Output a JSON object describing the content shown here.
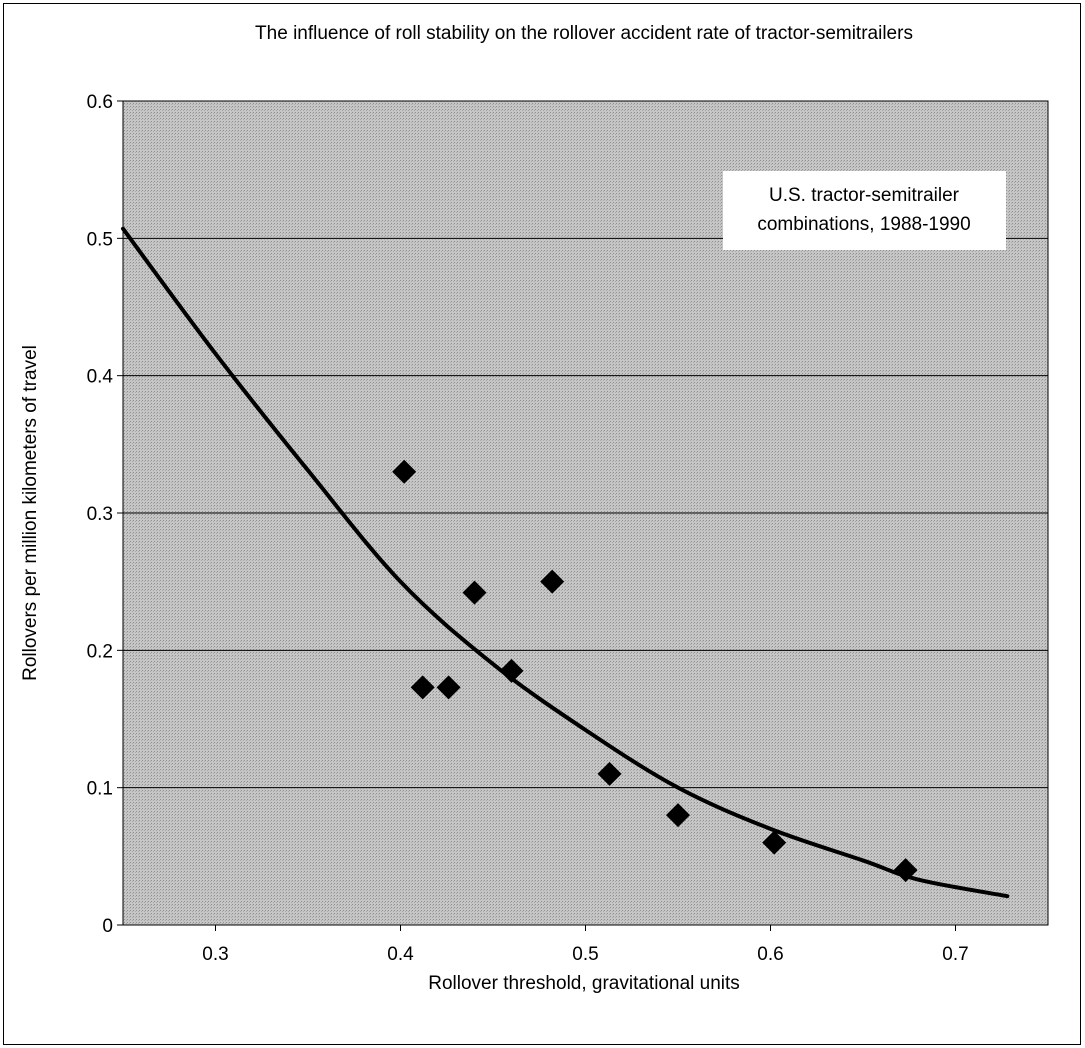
{
  "chart_data": {
    "type": "scatter",
    "title": "The influence of roll stability on the rollover accident rate of tractor-semitrailers",
    "xlabel": "Rollover threshold, gravitational units",
    "ylabel": "Rollovers per million kilometers of travel",
    "xlim": [
      0.25,
      0.75
    ],
    "ylim": [
      0,
      0.6
    ],
    "x_ticks": [
      0.3,
      0.4,
      0.5,
      0.6,
      0.7
    ],
    "y_ticks": [
      0,
      0.1,
      0.2,
      0.3,
      0.4,
      0.5,
      0.6
    ],
    "x_tick_labels": [
      "0.3",
      "0.4",
      "0.5",
      "0.6",
      "0.7"
    ],
    "y_tick_labels": [
      "0",
      "0.1",
      "0.2",
      "0.3",
      "0.4",
      "0.5",
      "0.6"
    ],
    "grid": {
      "horizontal": true,
      "vertical": false
    },
    "annotation_lines": [
      "U.S. tractor-semitrailer",
      "combinations, 1988-1990"
    ],
    "series": [
      {
        "type": "scatter",
        "marker": "diamond",
        "x": [
          0.402,
          0.412,
          0.426,
          0.44,
          0.46,
          0.482,
          0.513,
          0.55,
          0.602,
          0.673
        ],
        "y": [
          0.33,
          0.173,
          0.173,
          0.242,
          0.185,
          0.25,
          0.11,
          0.08,
          0.06,
          0.04
        ]
      },
      {
        "type": "line",
        "x": [
          0.25,
          0.3,
          0.35,
          0.4,
          0.45,
          0.5,
          0.55,
          0.6,
          0.65,
          0.68,
          0.728
        ],
        "y": [
          0.507,
          0.416,
          0.331,
          0.25,
          0.19,
          0.142,
          0.1,
          0.07,
          0.047,
          0.033,
          0.021
        ]
      }
    ],
    "colors": {
      "plot_bg": "#bdbdbd",
      "marks": "#000000",
      "page_bg": "#ffffff"
    }
  }
}
